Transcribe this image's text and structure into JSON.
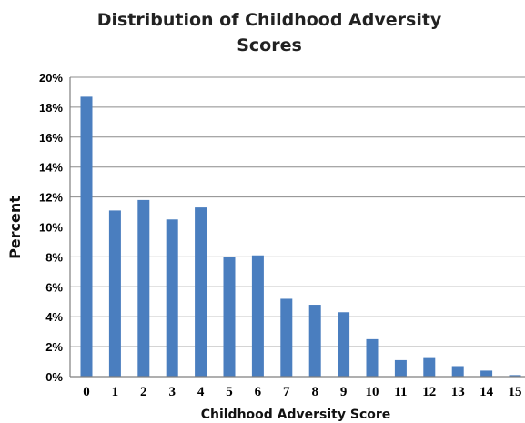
{
  "chart_data": {
    "type": "bar",
    "title": "Distribution of Childhood Adversity Scores",
    "title_lines": [
      "Distribution of Childhood Adversity",
      "Scores"
    ],
    "xlabel": "Childhood Adversity Score",
    "ylabel": "Percent",
    "categories": [
      "0",
      "1",
      "2",
      "3",
      "4",
      "5",
      "6",
      "7",
      "8",
      "9",
      "10",
      "11",
      "12",
      "13",
      "14",
      "15"
    ],
    "values": [
      18.7,
      11.1,
      11.8,
      10.5,
      11.3,
      8.0,
      8.1,
      5.2,
      4.8,
      4.3,
      2.5,
      1.1,
      1.3,
      0.7,
      0.4,
      0.1
    ],
    "ylim": [
      0,
      20
    ],
    "yticks": [
      0,
      2,
      4,
      6,
      8,
      10,
      12,
      14,
      16,
      18,
      20
    ],
    "ytick_labels": [
      "0%",
      "2%",
      "4%",
      "6%",
      "8%",
      "10%",
      "12%",
      "14%",
      "16%",
      "18%",
      "20%"
    ],
    "grid": true,
    "legend": "none",
    "colors": {
      "bar": "#4a7ebf",
      "grid": "#8c8c8c",
      "axis": "#7f7f7f"
    }
  }
}
